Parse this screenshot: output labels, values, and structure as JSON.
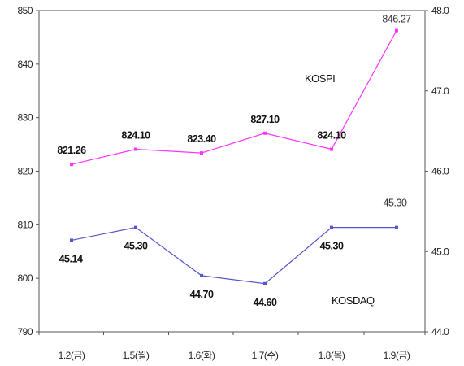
{
  "chart_data": {
    "type": "line",
    "title": "",
    "categories": [
      "1.2(금)",
      "1.5(월)",
      "1.6(화)",
      "1.7(수)",
      "1.8(목)",
      "1.9(금)"
    ],
    "y_left": {
      "ylim": [
        790,
        850
      ],
      "ticks": [
        "790",
        "800",
        "810",
        "820",
        "830",
        "840",
        "850"
      ]
    },
    "y_right": {
      "ylim": [
        44.0,
        48.0
      ],
      "ticks": [
        "44.0",
        "45.0",
        "46.0",
        "47.0",
        "48.0"
      ]
    },
    "grid": false,
    "series": [
      {
        "name": "KOSPI",
        "axis": "left",
        "color": "#ff33ff",
        "values": [
          821.26,
          824.1,
          823.4,
          827.1,
          824.1,
          846.27
        ],
        "labels": [
          "821.26",
          "824.10",
          "823.40",
          "827.10",
          "824.10",
          "846.27"
        ]
      },
      {
        "name": "KOSDAQ",
        "axis": "right",
        "color": "#5555cc",
        "values": [
          45.14,
          45.3,
          44.7,
          44.6,
          45.3,
          45.3
        ],
        "labels": [
          "45.14",
          "45.30",
          "44.70",
          "44.60",
          "45.30",
          "45.30"
        ]
      }
    ]
  }
}
